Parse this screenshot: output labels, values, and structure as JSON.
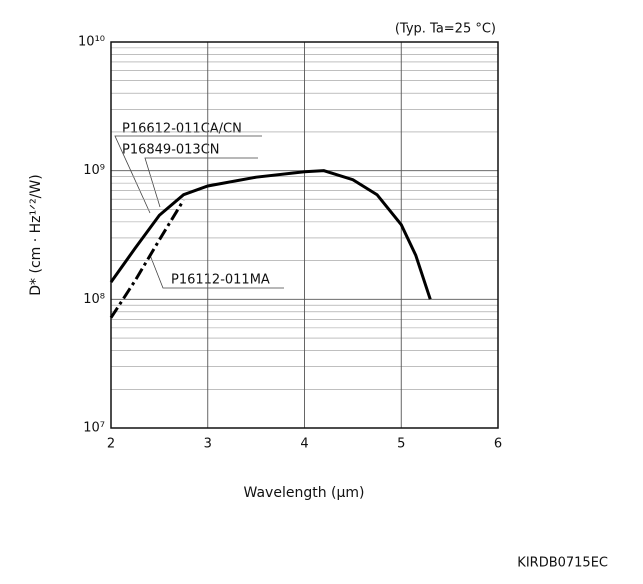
{
  "chart_data": {
    "type": "line",
    "annotation_top": "(Typ. Ta=25 °C)",
    "code": "KIRDB0715EC",
    "xlabel": "Wavelength (μm)",
    "ylabel": "D* (cm · Hz¹ᐟ²/W)",
    "x": [
      2.0,
      2.25,
      2.5,
      2.75,
      3.0,
      3.5,
      4.0,
      4.2,
      4.5,
      4.75,
      5.0,
      5.15,
      5.3
    ],
    "series": [
      {
        "name": "P16612-011CA/CN",
        "color": "#000000",
        "dash": "solid",
        "values": [
          136000000,
          250000000,
          450000000,
          650000000,
          760000000,
          890000000,
          980000000,
          1000000000,
          850000000,
          650000000,
          380000000,
          220000000,
          100000000
        ]
      },
      {
        "name": "P16112-011MA",
        "color": "#000000",
        "dash": "dashdot",
        "values": [
          72000000,
          140000000,
          290000000,
          590000000,
          null,
          null,
          null,
          null,
          null,
          null,
          null,
          null,
          null
        ]
      }
    ],
    "series_note": "P16849-013CN",
    "xlim": [
      2,
      6
    ],
    "xticks": [
      2,
      3,
      4,
      5,
      6
    ],
    "ylim": [
      10000000,
      10000000000
    ],
    "yticks": [
      {
        "value": 10000000,
        "label": "10⁷"
      },
      {
        "value": 100000000,
        "label": "10⁸"
      },
      {
        "value": 1000000000,
        "label": "10⁹"
      },
      {
        "value": 10000000000,
        "label": "10¹⁰"
      }
    ],
    "ylog": true,
    "grid": true
  }
}
